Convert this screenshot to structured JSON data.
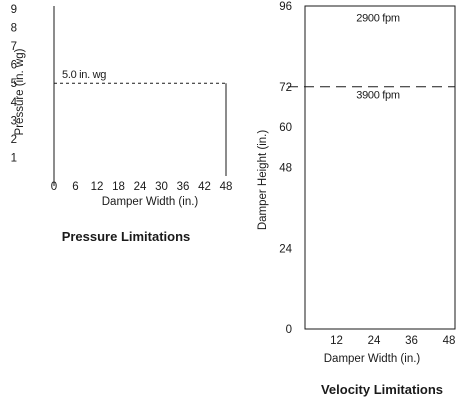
{
  "chart_data": [
    {
      "type": "line",
      "caption": "Pressure Limitations",
      "xlabel": "Damper Width (in.)",
      "ylabel": "Pressure (in. wg)",
      "x_ticks": [
        "0",
        "6",
        "12",
        "18",
        "24",
        "30",
        "36",
        "42",
        "48"
      ],
      "y_ticks": [
        "1",
        "2",
        "3",
        "4",
        "5",
        "6",
        "7",
        "8",
        "9"
      ],
      "xlim": [
        0,
        48
      ],
      "ylim": [
        0,
        9
      ],
      "series": [
        {
          "x": [
            0,
            48,
            48
          ],
          "y": [
            5,
            5,
            0
          ],
          "style": "dashed-then-solid"
        }
      ],
      "annotations": [
        {
          "text": "5.0 in. wg",
          "x": 0,
          "y": 5
        }
      ]
    },
    {
      "type": "line",
      "caption": "Velocity Limitations",
      "xlabel": "Damper Width (in.)",
      "ylabel": "Damper Height (in.)",
      "x_ticks": [
        "12",
        "24",
        "36",
        "48"
      ],
      "y_ticks": [
        "0",
        "24",
        "48",
        "60",
        "72",
        "96"
      ],
      "xlim": [
        0,
        48
      ],
      "ylim": [
        0,
        96
      ],
      "series": [
        {
          "x": [
            0,
            48
          ],
          "y": [
            72,
            72
          ],
          "style": "dashed"
        }
      ],
      "annotations": [
        {
          "text": "2900 fpm",
          "x": 24,
          "y": 84
        },
        {
          "text": "3900 fpm",
          "x": 24,
          "y": 64
        }
      ]
    }
  ]
}
